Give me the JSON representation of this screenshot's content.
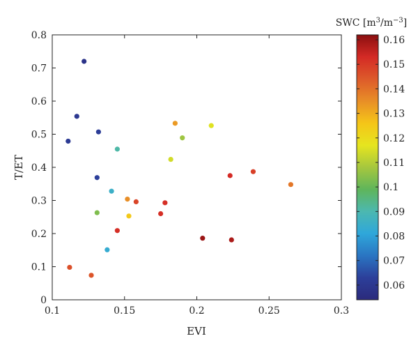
{
  "chart_data": {
    "type": "scatter",
    "xlabel": "EVI",
    "ylabel": "T/ET",
    "xlim": [
      0.1,
      0.3
    ],
    "ylim": [
      0,
      0.8
    ],
    "xticks": [
      0.1,
      0.15,
      0.2,
      0.25,
      0.3
    ],
    "xtick_labels": [
      "0.1",
      "0.15",
      "0.2",
      "0.25",
      "0.3"
    ],
    "yticks": [
      0,
      0.1,
      0.2,
      0.3,
      0.4,
      0.5,
      0.6,
      0.7,
      0.8
    ],
    "ytick_labels": [
      "0",
      "0.1",
      "0.2",
      "0.3",
      "0.4",
      "0.5",
      "0.6",
      "0.7",
      "0.8"
    ],
    "grid": false,
    "colorbar": {
      "title": "SWC [m3/m-3]",
      "range": [
        0.054,
        0.162
      ],
      "ticks": [
        0.06,
        0.07,
        0.08,
        0.09,
        0.1,
        0.11,
        0.12,
        0.13,
        0.14,
        0.15,
        0.16
      ],
      "tick_labels": [
        "0.06",
        "0.07",
        "0.08",
        "0.09",
        "0.1",
        "0.11",
        "0.12",
        "0.13",
        "0.14",
        "0.15",
        "0.16"
      ],
      "colormap": [
        "#2b2a7c",
        "#2c3f9a",
        "#2a75c2",
        "#2fa7da",
        "#4cb8b0",
        "#5fb55b",
        "#a6c73e",
        "#e6e51f",
        "#f5c518",
        "#e88e27",
        "#dd5a2a",
        "#d42a25",
        "#8b0f10"
      ]
    },
    "points": [
      {
        "x": 0.122,
        "y": 0.72,
        "swc": 0.058
      },
      {
        "x": 0.117,
        "y": 0.554,
        "swc": 0.06
      },
      {
        "x": 0.132,
        "y": 0.507,
        "swc": 0.062
      },
      {
        "x": 0.111,
        "y": 0.479,
        "swc": 0.061
      },
      {
        "x": 0.131,
        "y": 0.369,
        "swc": 0.063
      },
      {
        "x": 0.145,
        "y": 0.455,
        "swc": 0.091
      },
      {
        "x": 0.141,
        "y": 0.328,
        "swc": 0.085
      },
      {
        "x": 0.131,
        "y": 0.263,
        "swc": 0.103
      },
      {
        "x": 0.138,
        "y": 0.151,
        "swc": 0.083
      },
      {
        "x": 0.145,
        "y": 0.209,
        "swc": 0.152
      },
      {
        "x": 0.112,
        "y": 0.098,
        "swc": 0.146
      },
      {
        "x": 0.127,
        "y": 0.074,
        "swc": 0.145
      },
      {
        "x": 0.152,
        "y": 0.304,
        "swc": 0.135
      },
      {
        "x": 0.153,
        "y": 0.253,
        "swc": 0.125
      },
      {
        "x": 0.158,
        "y": 0.296,
        "swc": 0.148
      },
      {
        "x": 0.175,
        "y": 0.26,
        "swc": 0.152
      },
      {
        "x": 0.178,
        "y": 0.293,
        "swc": 0.152
      },
      {
        "x": 0.185,
        "y": 0.533,
        "swc": 0.133
      },
      {
        "x": 0.182,
        "y": 0.424,
        "swc": 0.114
      },
      {
        "x": 0.19,
        "y": 0.489,
        "swc": 0.107
      },
      {
        "x": 0.21,
        "y": 0.526,
        "swc": 0.116
      },
      {
        "x": 0.204,
        "y": 0.186,
        "swc": 0.16
      },
      {
        "x": 0.224,
        "y": 0.181,
        "swc": 0.158
      },
      {
        "x": 0.223,
        "y": 0.375,
        "swc": 0.153
      },
      {
        "x": 0.239,
        "y": 0.387,
        "swc": 0.149
      },
      {
        "x": 0.265,
        "y": 0.348,
        "swc": 0.139
      }
    ]
  }
}
